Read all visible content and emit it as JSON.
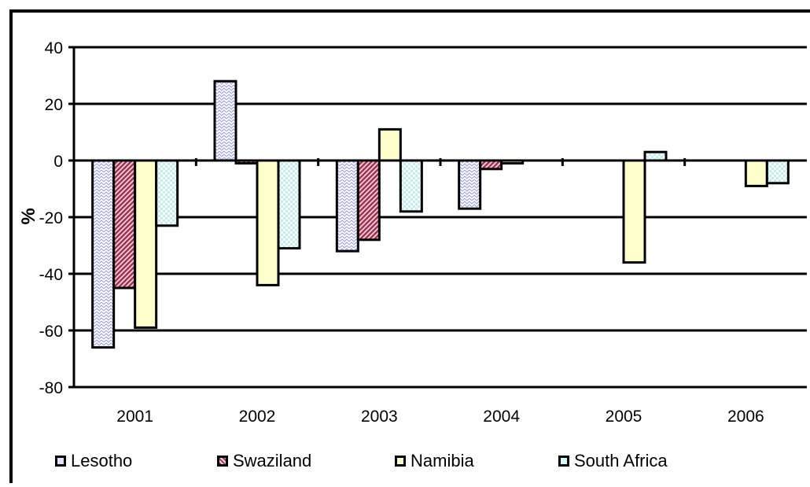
{
  "chart_data": {
    "type": "bar",
    "title": "",
    "xlabel": "",
    "ylabel": "%",
    "ylim": [
      -80,
      40
    ],
    "yticks": [
      "40",
      "20",
      "0",
      "-20",
      "-40",
      "-60",
      "-80"
    ],
    "ytick_values": [
      40,
      20,
      0,
      -20,
      -40,
      -60,
      -80
    ],
    "categories": [
      "2001",
      "2002",
      "2003",
      "2004",
      "2005",
      "2006"
    ],
    "grid": "horizontal",
    "legend_position": "bottom",
    "series": [
      {
        "name": "Lesotho",
        "color": "#e0e0ff",
        "pattern": "zigzag",
        "values": [
          -66,
          28,
          -32,
          -17,
          0,
          0
        ]
      },
      {
        "name": "Swaziland",
        "color": "#a03050",
        "pattern": "diagonal",
        "values": [
          -45,
          -1,
          -28,
          -3,
          0,
          0
        ]
      },
      {
        "name": "Namibia",
        "color": "#ffffcc",
        "pattern": "solid",
        "values": [
          -59,
          -44,
          11,
          -1,
          -36,
          -9
        ]
      },
      {
        "name": "South Africa",
        "color": "#ccffff",
        "pattern": "dots",
        "values": [
          -23,
          -31,
          -18,
          0,
          3,
          -8
        ]
      }
    ]
  }
}
